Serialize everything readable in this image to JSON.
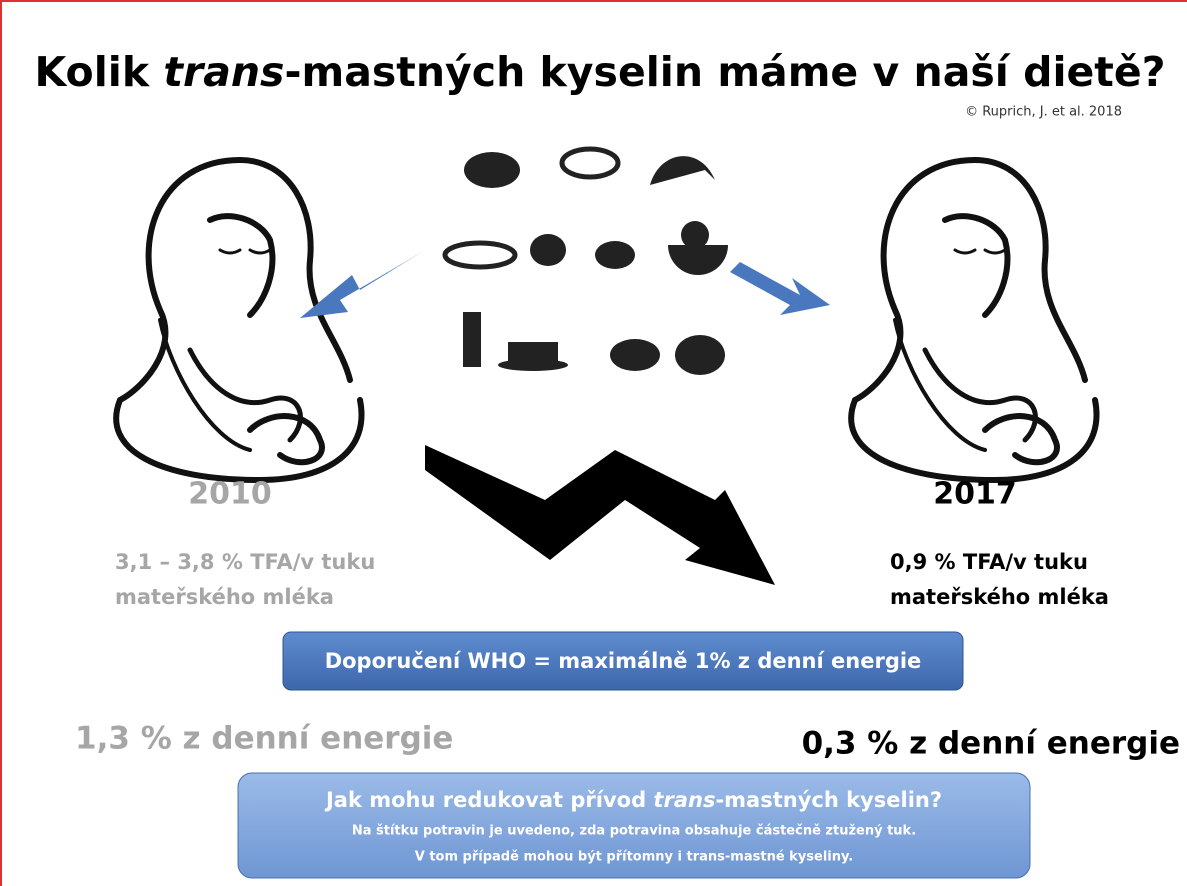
{
  "header": {
    "title": {
      "before": "Kolik ",
      "italic": "trans",
      "after": "-mastných kyselin máme v naší dietě?"
    },
    "credit": "© Ruprich, J. et al. 2018"
  },
  "left": {
    "year": "2010",
    "lines": [
      "3,1 – 3,8 % TFA/v tuku",
      "mateřského mléka"
    ],
    "energy": "1,3 % z denní energie"
  },
  "right": {
    "year": "2017",
    "lines": [
      "0,9 % TFA/v tuku",
      "mateřského mléka"
    ],
    "energy": "0,3 % z denní energie"
  },
  "who_box": "Doporučení WHO = maximálně 1% z denní energie",
  "tip_box": {
    "title": {
      "before": "Jak mohu redukovat přívod ",
      "italic": "trans",
      "after": "-mastných kyselin?"
    },
    "lines": [
      "Na štítku potravin je uvedeno, zda potravina obsahuje částečně ztužený tuk.",
      "V tom případě mohou být přítomny i trans-mastné kyseliny."
    ]
  }
}
